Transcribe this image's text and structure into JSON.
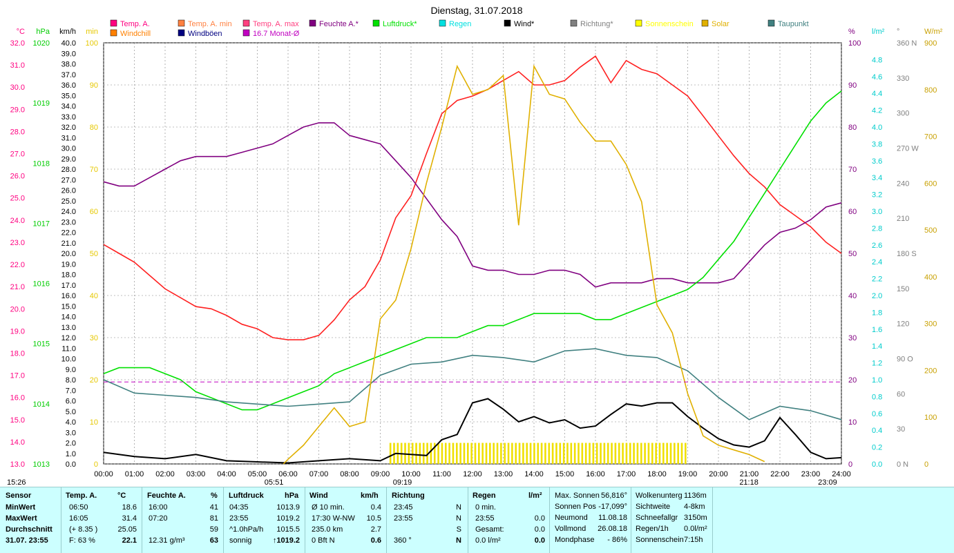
{
  "chart_data": {
    "type": "line",
    "title": "Dienstag, 31.07.2018",
    "x_ticks": [
      "00:00",
      "01:00",
      "02:00",
      "03:00",
      "04:00",
      "05:00",
      "06:00",
      "07:00",
      "08:00",
      "09:00",
      "10:00",
      "11:00",
      "12:00",
      "13:00",
      "14:00",
      "15:00",
      "16:00",
      "17:00",
      "18:00",
      "19:00",
      "20:00",
      "21:00",
      "22:00",
      "23:00",
      "24:00"
    ],
    "x_range_hours": [
      0,
      24
    ],
    "grid": true,
    "axes": {
      "temp": {
        "unit": "°C",
        "range": [
          13.0,
          32.0
        ],
        "ticks": [
          "32.0",
          "31.0",
          "30.0",
          "29.0",
          "28.0",
          "27.0",
          "26.0",
          "25.0",
          "24.0",
          "23.0",
          "22.0",
          "21.0",
          "20.0",
          "19.0",
          "18.0",
          "17.0",
          "16.0",
          "15.0",
          "14.0",
          "13.0"
        ],
        "color": "#ff0080"
      },
      "pressure": {
        "unit": "hPa",
        "range": [
          1013,
          1020
        ],
        "ticks": [
          "1020",
          "1019",
          "1018",
          "1017",
          "1016",
          "1015",
          "1014",
          "1013"
        ],
        "color": "#00cc00"
      },
      "wind_kmh": {
        "unit": "km/h",
        "range": [
          0,
          40
        ],
        "ticks": [
          "40.0",
          "39.0",
          "38.0",
          "37.0",
          "36.0",
          "35.0",
          "34.0",
          "33.0",
          "32.0",
          "31.0",
          "30.0",
          "29.0",
          "28.0",
          "27.0",
          "26.0",
          "25.0",
          "24.0",
          "23.0",
          "22.0",
          "21.0",
          "20.0",
          "19.0",
          "18.0",
          "17.0",
          "16.0",
          "15.0",
          "14.0",
          "13.0",
          "12.0",
          "11.0",
          "10.0",
          "9.0",
          "8.0",
          "7.0",
          "6.0",
          "5.0",
          "4.0",
          "3.0",
          "2.0",
          "1.0",
          "0.0"
        ],
        "color": "#000000"
      },
      "minutes": {
        "unit": "min",
        "range": [
          0,
          100
        ],
        "ticks": [
          "100",
          "90",
          "80",
          "70",
          "60",
          "50",
          "40",
          "30",
          "20",
          "10",
          "0"
        ],
        "color": "#e6c800"
      },
      "humidity": {
        "unit": "%",
        "range": [
          0,
          100
        ],
        "ticks": [
          "100",
          "90",
          "80",
          "70",
          "60",
          "50",
          "40",
          "30",
          "20",
          "10",
          "0"
        ],
        "color": "#800080"
      },
      "rain": {
        "unit": "l/m²",
        "range": [
          0,
          5.0
        ],
        "ticks": [
          "4.8",
          "4.6",
          "4.4",
          "4.2",
          "4.0",
          "3.8",
          "3.6",
          "3.4",
          "3.2",
          "3.0",
          "2.8",
          "2.6",
          "2.4",
          "2.2",
          "2.0",
          "1.8",
          "1.6",
          "1.4",
          "1.2",
          "1.0",
          "0.8",
          "0.6",
          "0.4",
          "0.2",
          "0.0"
        ],
        "color": "#00cccc"
      },
      "direction": {
        "unit": "°",
        "range": [
          0,
          360
        ],
        "ticks": [
          "360 N",
          "330",
          "300",
          "270 W",
          "240",
          "210",
          "180 S",
          "150",
          "120",
          "90 O",
          "60",
          "30",
          "0 N"
        ],
        "color": "#808080"
      },
      "solar": {
        "unit": "W/m²",
        "range": [
          0,
          900
        ],
        "ticks": [
          "900",
          "800",
          "700",
          "600",
          "500",
          "400",
          "300",
          "200",
          "100",
          "0"
        ],
        "color": "#c8a000"
      }
    },
    "legend": [
      {
        "name": "Temp. A.",
        "color": "#ff0080"
      },
      {
        "name": "Temp. A. min",
        "color": "#ff8040"
      },
      {
        "name": "Temp. A. max",
        "color": "#ff4080"
      },
      {
        "name": "Feuchte A.*",
        "color": "#800080"
      },
      {
        "name": "Luftdruck*",
        "color": "#00e000"
      },
      {
        "name": "Regen",
        "color": "#00e0e0"
      },
      {
        "name": "Wind*",
        "color": "#000000"
      },
      {
        "name": "Richtung*",
        "color": "#808080"
      },
      {
        "name": "Sonnenschein",
        "color": "#ffff00"
      },
      {
        "name": "Solar",
        "color": "#e0b000"
      },
      {
        "name": "Taupunkt",
        "color": "#408080"
      },
      {
        "name": "Windchill",
        "color": "#ff8000"
      },
      {
        "name": "Windböen",
        "color": "#000080"
      },
      {
        "name": "16.7 Monat-Ø",
        "color": "#c000c0"
      }
    ],
    "series": [
      {
        "name": "Temp. A.",
        "axis": "temp",
        "color": "#ff2020",
        "x": [
          0,
          0.5,
          1,
          1.5,
          2,
          2.5,
          3,
          3.5,
          4,
          4.5,
          5,
          5.5,
          6,
          6.5,
          7,
          7.5,
          8,
          8.5,
          9,
          9.5,
          10,
          10.5,
          11,
          11.5,
          12,
          12.5,
          13,
          13.5,
          14,
          14.5,
          15,
          15.5,
          16,
          16.5,
          17,
          17.5,
          18,
          18.5,
          19,
          19.5,
          20,
          20.5,
          21,
          21.5,
          22,
          22.5,
          23,
          23.5,
          24
        ],
        "values": [
          22.9,
          22.5,
          22.1,
          21.5,
          20.9,
          20.5,
          20.1,
          20.0,
          19.7,
          19.3,
          19.1,
          18.7,
          18.6,
          18.6,
          18.8,
          19.5,
          20.4,
          21.0,
          22.2,
          24.1,
          25.1,
          27.0,
          28.8,
          29.4,
          29.6,
          29.9,
          30.3,
          30.7,
          30.1,
          30.1,
          30.3,
          30.9,
          31.4,
          30.2,
          31.2,
          30.8,
          30.6,
          30.1,
          29.6,
          28.7,
          27.8,
          26.9,
          26.1,
          25.5,
          24.7,
          24.2,
          23.7,
          23.0,
          22.5
        ]
      },
      {
        "name": "Feuchte A.*",
        "axis": "humidity",
        "color": "#800080",
        "x": [
          0,
          0.5,
          1,
          1.5,
          2,
          2.5,
          3,
          3.5,
          4,
          4.5,
          5,
          5.5,
          6,
          6.5,
          7,
          7.5,
          8,
          8.5,
          9,
          9.5,
          10,
          10.5,
          11,
          11.5,
          12,
          12.5,
          13,
          13.5,
          14,
          14.5,
          15,
          15.5,
          16,
          16.5,
          17,
          17.5,
          18,
          18.5,
          19,
          19.5,
          20,
          20.5,
          21,
          21.5,
          22,
          22.5,
          23,
          23.5,
          24
        ],
        "values": [
          67,
          66,
          66,
          68,
          70,
          72,
          73,
          73,
          73,
          74,
          75,
          76,
          78,
          80,
          81,
          81,
          78,
          77,
          76,
          72,
          68,
          63,
          58,
          54,
          47,
          46,
          46,
          45,
          45,
          46,
          46,
          45,
          42,
          43,
          43,
          43,
          44,
          44,
          43,
          43,
          43,
          44,
          48,
          52,
          55,
          56,
          58,
          61,
          62
        ]
      },
      {
        "name": "Luftdruck*",
        "axis": "pressure",
        "x": [
          0,
          0.5,
          1,
          1.5,
          2,
          2.5,
          3,
          3.5,
          4,
          4.5,
          5,
          5.5,
          6,
          6.5,
          7,
          7.5,
          8,
          8.5,
          9,
          9.5,
          10,
          10.5,
          11,
          11.5,
          12,
          12.5,
          13,
          13.5,
          14,
          14.5,
          15,
          15.5,
          16,
          16.5,
          17,
          17.5,
          18,
          18.5,
          19,
          19.5,
          20,
          20.5,
          21,
          21.5,
          22,
          22.5,
          23,
          23.5,
          24
        ],
        "values": [
          1014.5,
          1014.6,
          1014.6,
          1014.6,
          1014.5,
          1014.4,
          1014.2,
          1014.1,
          1014.0,
          1013.9,
          1013.9,
          1014.0,
          1014.1,
          1014.2,
          1014.3,
          1014.5,
          1014.6,
          1014.7,
          1014.8,
          1014.9,
          1015.0,
          1015.1,
          1015.1,
          1015.1,
          1015.2,
          1015.3,
          1015.3,
          1015.4,
          1015.5,
          1015.5,
          1015.5,
          1015.5,
          1015.4,
          1015.4,
          1015.5,
          1015.6,
          1015.7,
          1015.8,
          1015.9,
          1016.1,
          1016.4,
          1016.7,
          1017.1,
          1017.5,
          1017.9,
          1018.3,
          1018.7,
          1019.0,
          1019.2
        ]
      },
      {
        "name": "Taupunkt",
        "axis": "temp",
        "x": [
          0,
          1,
          2,
          3,
          4,
          5,
          6,
          7,
          8,
          9,
          10,
          11,
          12,
          13,
          14,
          15,
          16,
          17,
          18,
          19,
          20,
          21,
          22,
          23,
          24
        ],
        "values": [
          16.8,
          16.2,
          16.1,
          16.0,
          15.8,
          15.7,
          15.6,
          15.7,
          15.8,
          17.0,
          17.5,
          17.6,
          17.9,
          17.8,
          17.6,
          18.1,
          18.2,
          17.9,
          17.8,
          17.2,
          16.0,
          15.0,
          15.6,
          15.4,
          15.0
        ]
      },
      {
        "name": "Wind*",
        "axis": "wind_kmh",
        "x": [
          0,
          1,
          2,
          3,
          4,
          5,
          6,
          7,
          8,
          9,
          9.5,
          10,
          10.5,
          11,
          11.5,
          12,
          12.5,
          13,
          13.5,
          14,
          14.5,
          15,
          15.5,
          16,
          16.5,
          17,
          17.5,
          18,
          18.5,
          19,
          19.5,
          20,
          20.5,
          21,
          21.5,
          22,
          22.5,
          23,
          23.5,
          24
        ],
        "values": [
          1.1,
          0.7,
          0.5,
          0.9,
          0.3,
          0.2,
          0.1,
          0.3,
          0.5,
          0.3,
          1.0,
          0.9,
          0.8,
          2.3,
          2.8,
          5.8,
          6.2,
          5.2,
          4.0,
          4.5,
          3.9,
          4.2,
          3.4,
          3.6,
          4.7,
          5.7,
          5.5,
          5.8,
          5.8,
          4.5,
          3.4,
          2.4,
          1.8,
          1.6,
          2.2,
          4.4,
          2.8,
          1.1,
          0.5,
          0.6
        ]
      },
      {
        "name": "Solar",
        "axis": "solar",
        "x": [
          5.85,
          6,
          6.5,
          7,
          7.5,
          8,
          8.5,
          9,
          9.5,
          10,
          10.5,
          11,
          11.5,
          12,
          12.5,
          13,
          13.5,
          14,
          14.5,
          15,
          15.5,
          16,
          16.5,
          17,
          17.5,
          18,
          18.5,
          19,
          19.5,
          20,
          20.5,
          21,
          21.5
        ],
        "values": [
          0,
          10,
          40,
          80,
          120,
          80,
          90,
          310,
          350,
          460,
          600,
          720,
          850,
          790,
          800,
          830,
          510,
          850,
          790,
          780,
          730,
          690,
          690,
          640,
          560,
          340,
          280,
          150,
          60,
          40,
          30,
          20,
          5
        ]
      },
      {
        "name": "16.7 Monat-Ø",
        "axis": "temp",
        "x": [
          0,
          24
        ],
        "values": [
          16.7,
          16.7
        ]
      }
    ],
    "sunshine_minutes_bars": {
      "axis": "minutes",
      "from": 9.3,
      "to": 19.0,
      "value": 5
    }
  },
  "info": {
    "sunrise_label": "05:51",
    "sunset_label": "21:18",
    "moonrise_label": "15:26",
    "moonset_label": "23:09",
    "solar_noon_label": "09:19"
  },
  "table": {
    "col_labels": {
      "sensor": "Sensor",
      "temp": "Temp. A.",
      "temp_unit": "°C",
      "hum": "Feuchte A.",
      "hum_unit": "%",
      "press": "Luftdruck",
      "press_unit": "hPa",
      "wind": "Wind",
      "wind_unit": "km/h",
      "dir": "Richtung",
      "rain": "Regen",
      "rain_unit": "l/m²"
    },
    "rows": [
      {
        "label": "MinWert",
        "temp_time": "06:50",
        "temp_val": "18.6",
        "hum_time": "16:00",
        "hum_val": "41",
        "press_time": "04:35",
        "press_val": "1013.9",
        "wind_l": "Ø 10 min.",
        "wind_val": "0.4",
        "dir_time": "23:45",
        "dir_val": "N",
        "rain_l": "0 min.",
        "rain_val": ""
      },
      {
        "label": "MaxWert",
        "temp_time": "16:05",
        "temp_val": "31.4",
        "hum_time": "07:20",
        "hum_val": "81",
        "press_time": "23:55",
        "press_val": "1019.2",
        "wind_l": "17:30  W-NW",
        "wind_val": "10.5",
        "dir_time": "23:55",
        "dir_val": "N",
        "rain_l": "23:55",
        "rain_val": "0.0"
      },
      {
        "label": "Durchschnitt",
        "temp_time": "(+ 8.35 )",
        "temp_val": "25.05",
        "hum_time": "",
        "hum_val": "59",
        "press_time": "^1.0hPa/h",
        "press_val": "1015.5",
        "wind_l": "235.0 km",
        "wind_val": "2.7",
        "dir_time": "",
        "dir_val": "S",
        "rain_l": "Gesamt:",
        "rain_val": "0.0"
      },
      {
        "label": "31.07. 23:55",
        "temp_time": "F: 63 %",
        "temp_val": "22.1",
        "hum_time": "12.31 g/m³",
        "hum_val": "63",
        "press_time": "sonnig",
        "press_val": "↑1019.2",
        "wind_l": "0 Bft N",
        "wind_val": "0.6",
        "dir_time": "360 °",
        "dir_val": "N",
        "rain_l": "0.0 l/m²",
        "rain_val": "0.0"
      }
    ],
    "astro": [
      {
        "k": "Max. Sonnen",
        "v": "56,816°"
      },
      {
        "k": "Sonnen Pos",
        "v": "-17,099°"
      },
      {
        "k": "Neumond",
        "v": "11.08.18"
      },
      {
        "k": "Vollmond",
        "v": "26.08.18"
      },
      {
        "k": "Mondphase",
        "v": "- 86%"
      }
    ],
    "misc": [
      {
        "k": "Wolkenunterg",
        "v": "1136m"
      },
      {
        "k": "Sichtweite",
        "v": "4-8km"
      },
      {
        "k": "Schneefallgr",
        "v": "3150m"
      },
      {
        "k": "Regen/1h",
        "v": "0.0l/m²"
      },
      {
        "k": "Sonnenschein",
        "v": "7:15h"
      }
    ]
  }
}
